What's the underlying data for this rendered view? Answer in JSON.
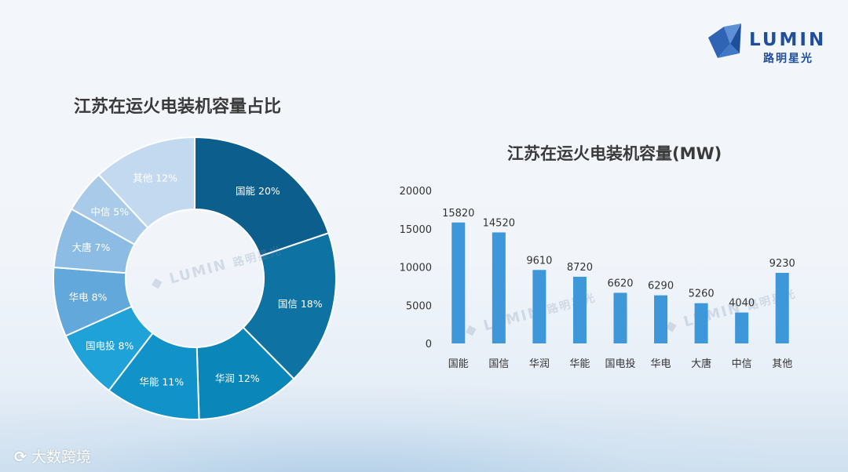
{
  "brand": {
    "name_en": "LUMIN",
    "name_cn": "路明星光"
  },
  "footer_watermark": "大数跨境",
  "chart_data": [
    {
      "type": "pie",
      "title": "江苏在运火电装机容量占比",
      "slices": [
        {
          "label": "国能 20%",
          "name": "国能",
          "value": 20,
          "color": "#0c5f8c"
        },
        {
          "label": "国信 18%",
          "name": "国信",
          "value": 18,
          "color": "#0e73a2"
        },
        {
          "label": "华润 12%",
          "name": "华润",
          "value": 12,
          "color": "#0a86b8"
        },
        {
          "label": "华能 11%",
          "name": "华能",
          "value": 11,
          "color": "#1193c9"
        },
        {
          "label": "国电投 8%",
          "name": "国电投",
          "value": 8,
          "color": "#1ea2d8"
        },
        {
          "label": "华电 8%",
          "name": "华电",
          "value": 8,
          "color": "#62a8da"
        },
        {
          "label": "大唐 7%",
          "name": "大唐",
          "value": 7,
          "color": "#8cbce3"
        },
        {
          "label": "中信 5%",
          "name": "中信",
          "value": 5,
          "color": "#a9cbe9"
        },
        {
          "label": "其他 12%",
          "name": "其他",
          "value": 12,
          "color": "#c3d9ef"
        }
      ]
    },
    {
      "type": "bar",
      "title": "江苏在运火电装机容量(MW)",
      "categories": [
        "国能",
        "国信",
        "华润",
        "华能",
        "国电投",
        "华电",
        "大唐",
        "中信",
        "其他"
      ],
      "values": [
        15820,
        14520,
        9610,
        8720,
        6620,
        6290,
        5260,
        4040,
        9230
      ],
      "ylim": [
        0,
        20000
      ],
      "yticks": [
        0,
        5000,
        10000,
        15000,
        20000
      ],
      "bar_color": "#3d97d8",
      "grid": false
    }
  ]
}
